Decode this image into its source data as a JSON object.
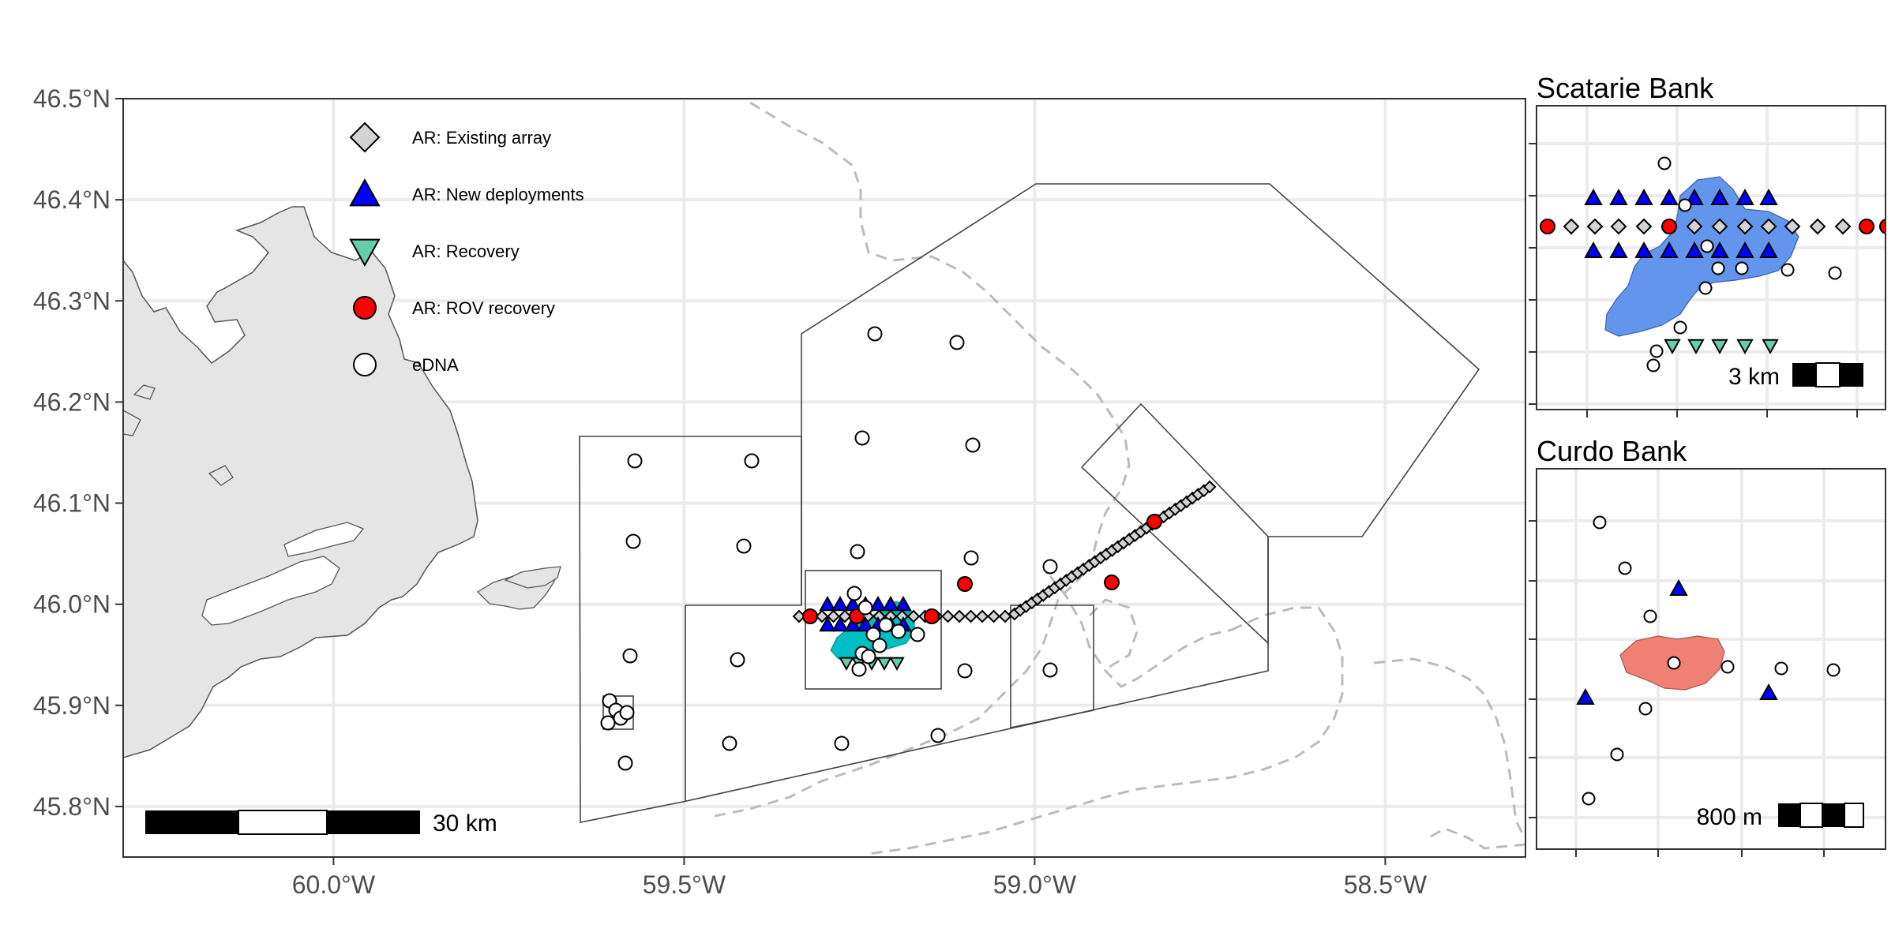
{
  "main_map": {
    "lat_ticks": [
      "46.5°N",
      "46.4°N",
      "46.3°N",
      "46.2°N",
      "46.1°N",
      "46.0°N",
      "45.9°N",
      "45.8°N"
    ],
    "lon_ticks": [
      "60.0°W",
      "59.5°W",
      "59.0°W",
      "58.5°W"
    ],
    "lat_range": [
      45.75,
      46.5
    ],
    "lon_range": [
      -60.3,
      -58.3
    ],
    "scale_bar_label": "30 km"
  },
  "legend": {
    "items": [
      {
        "label": "AR: Existing array",
        "symbol": "diamond",
        "color": "#d3d3d3"
      },
      {
        "label": "AR: New deployments",
        "symbol": "triangle-up",
        "color": "#0000ff"
      },
      {
        "label": "AR: Recovery",
        "symbol": "triangle-down",
        "color": "#66cdaa"
      },
      {
        "label": "AR: ROV recovery",
        "symbol": "circle",
        "color": "#ff0000"
      },
      {
        "label": "eDNA",
        "symbol": "circle",
        "color": "#ffffff"
      }
    ]
  },
  "inset_scatarie": {
    "title": "Scatarie Bank",
    "scale_bar_label": "3 km",
    "polygon_color": "#6495ed"
  },
  "inset_curdo": {
    "title": "Curdo Bank",
    "scale_bar_label": "800 m",
    "polygon_color": "#f08073"
  },
  "colors": {
    "land": "#e5e5e5",
    "grid": "#ebebeb",
    "boundary_dash": "#bbbbbb",
    "scatarie_polygon_main": "#00bfc4"
  }
}
